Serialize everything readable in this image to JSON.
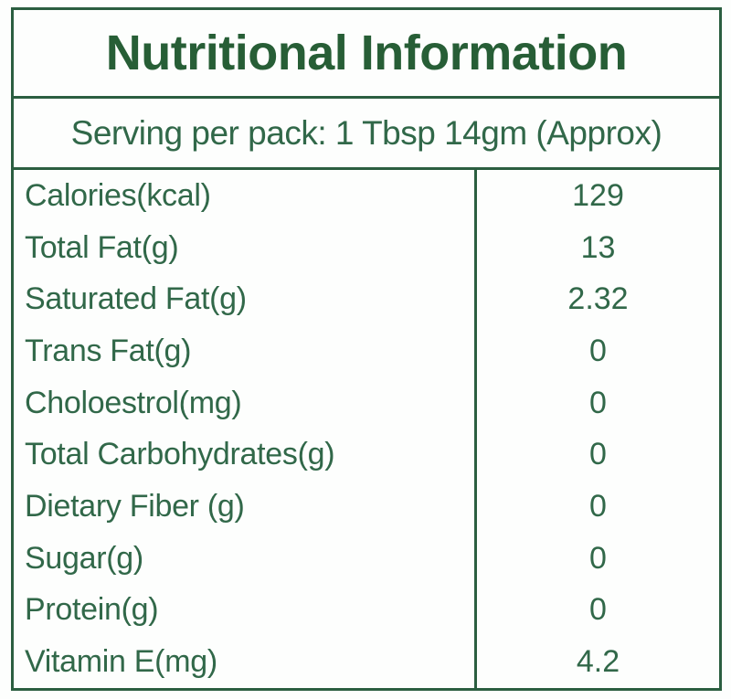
{
  "label": {
    "title": "Nutritional Information",
    "serving_line": "Serving per pack: 1 Tbsp 14gm (Approx)",
    "colors": {
      "frame_border": "#2B5E40",
      "title_text": "#275E36",
      "body_text": "#316849",
      "background": "#FDFEFD"
    },
    "rows": [
      {
        "name": "Calories(kcal)",
        "value": "129"
      },
      {
        "name": "Total Fat(g)",
        "value": "13"
      },
      {
        "name": "Saturated Fat(g)",
        "value": "2.32"
      },
      {
        "name": "Trans Fat(g)",
        "value": "0"
      },
      {
        "name": "Choloestrol(mg)",
        "value": "0"
      },
      {
        "name": "Total Carbohydrates(g)",
        "value": "0"
      },
      {
        "name": "Dietary Fiber (g)",
        "value": "0"
      },
      {
        "name": "Sugar(g)",
        "value": "0"
      },
      {
        "name": "Protein(g)",
        "value": "0"
      },
      {
        "name": "Vitamin E(mg)",
        "value": "4.2"
      }
    ]
  }
}
